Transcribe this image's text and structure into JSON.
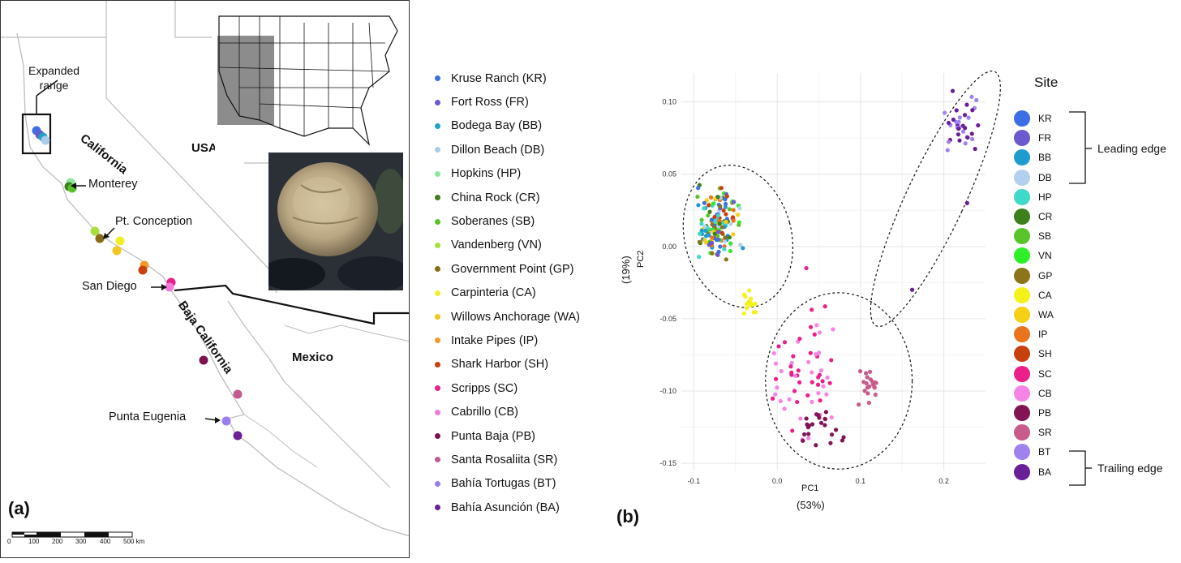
{
  "panel_a": {
    "label": "(a)",
    "map_labels": {
      "expanded_range": "Expanded\nrange",
      "california": "California",
      "usa": "USA",
      "monterey": "Monterey",
      "pt_conception": "Pt. Conception",
      "san_diego": "San Diego",
      "baja_california": "Baja California",
      "mexico": "Mexico",
      "punta_eugenia": "Punta Eugenia"
    },
    "scale_bar": {
      "ticks": [
        "0",
        "100",
        "200",
        "300",
        "400",
        "500 km"
      ]
    }
  },
  "legend": {
    "items": [
      {
        "label": "Kruse Ranch (KR)",
        "color": "#3b6fe3"
      },
      {
        "label": "Fort Ross (FR)",
        "color": "#6a5acd"
      },
      {
        "label": "Bodega Bay (BB)",
        "color": "#1fa3c6"
      },
      {
        "label": "Dillon Beach (DB)",
        "color": "#a9cdea"
      },
      {
        "label": "Hopkins (HP)",
        "color": "#8fe89a"
      },
      {
        "label": "China Rock (CR)",
        "color": "#3f7f1f"
      },
      {
        "label": "Soberanes (SB)",
        "color": "#59c22a"
      },
      {
        "label": "Vandenberg (VN)",
        "color": "#a6e03a"
      },
      {
        "label": "Government Point (GP)",
        "color": "#8a6b17"
      },
      {
        "label": "Carpinteria (CA)",
        "color": "#f2ee28"
      },
      {
        "label": "Willows Anchorage (WA)",
        "color": "#f2c81e"
      },
      {
        "label": "Intake Pipes (IP)",
        "color": "#f39a27"
      },
      {
        "label": "Shark Harbor (SH)",
        "color": "#c8410f"
      },
      {
        "label": "Scripps (SC)",
        "color": "#ea1f8b"
      },
      {
        "label": "Cabrillo (CB)",
        "color": "#f27ad9"
      },
      {
        "label": "Punta Baja (PB)",
        "color": "#7d1252"
      },
      {
        "label": "Santa Rosaliita (SR)",
        "color": "#c25a8f"
      },
      {
        "label": "Bahía Tortugas (BT)",
        "color": "#9a7ef0"
      },
      {
        "label": "Bahía Asunción (BA)",
        "color": "#6a1f95"
      }
    ]
  },
  "panel_b": {
    "label": "(b)",
    "legend_title": "Site",
    "leading_edge": "Leading edge",
    "trailing_edge": "Trailing edge",
    "sites": [
      {
        "code": "KR",
        "color": "#3b6fe3"
      },
      {
        "code": "FR",
        "color": "#6a5acd"
      },
      {
        "code": "BB",
        "color": "#1f9ccf"
      },
      {
        "code": "DB",
        "color": "#b3d1ef"
      },
      {
        "code": "HP",
        "color": "#3ed9c9"
      },
      {
        "code": "CR",
        "color": "#3d7f1a"
      },
      {
        "code": "SB",
        "color": "#5ac42b"
      },
      {
        "code": "VN",
        "color": "#2ff028"
      },
      {
        "code": "GP",
        "color": "#8b7419"
      },
      {
        "code": "CA",
        "color": "#f5f21a"
      },
      {
        "code": "WA",
        "color": "#f6cf17"
      },
      {
        "code": "IP",
        "color": "#ea741c"
      },
      {
        "code": "SH",
        "color": "#c8400e"
      },
      {
        "code": "SC",
        "color": "#ec1f8a"
      },
      {
        "code": "CB",
        "color": "#f584e6"
      },
      {
        "code": "PB",
        "color": "#821455"
      },
      {
        "code": "SR",
        "color": "#c95a8c"
      },
      {
        "code": "BT",
        "color": "#9f82ee"
      },
      {
        "code": "BA",
        "color": "#6a1f98"
      }
    ]
  },
  "chart_data": {
    "type": "scatter",
    "xlabel": "PC1",
    "xlabel_pct": "(53%)",
    "ylabel": "PC2",
    "ylabel_pct": "(19%)",
    "xlim": [
      -0.115,
      0.25
    ],
    "ylim": [
      -0.155,
      0.12
    ],
    "x_ticks": [
      -0.1,
      0.0,
      0.1,
      0.2
    ],
    "x_tick_labels": [
      "-0.1",
      "0.0",
      "0.1",
      "0.2"
    ],
    "y_ticks": [
      -0.15,
      -0.1,
      -0.05,
      0.0,
      0.05,
      0.1
    ],
    "y_tick_labels": [
      "-0.15",
      "-0.10",
      "-0.05",
      "0.00",
      "0.05",
      "0.10"
    ],
    "grid": true,
    "ellipses": [
      {
        "cx": -0.047,
        "cy": 0.007,
        "rx": 0.064,
        "ry": 0.05,
        "rot_deg": -15
      },
      {
        "cx": 0.074,
        "cy": -0.093,
        "rx": 0.088,
        "ry": 0.061,
        "rot_deg": 0
      },
      {
        "cx": 0.19,
        "cy": 0.033,
        "rx": 0.035,
        "ry": 0.097,
        "rot_deg": 25
      }
    ],
    "clusters": [
      {
        "sites": [
          "KR",
          "FR",
          "BB",
          "DB",
          "HP",
          "CR",
          "SB",
          "VN",
          "GP",
          "WA",
          "IP",
          "SH"
        ],
        "x_range": [
          -0.1,
          -0.04
        ],
        "y_range": [
          -0.01,
          0.045
        ],
        "n": 150
      },
      {
        "sites": [
          "CA"
        ],
        "x_range": [
          -0.045,
          -0.02
        ],
        "y_range": [
          -0.05,
          -0.025
        ],
        "n": 14
      },
      {
        "sites": [
          "SC",
          "CB"
        ],
        "x_range": [
          -0.02,
          0.08
        ],
        "y_range": [
          -0.14,
          -0.035
        ],
        "n": 60
      },
      {
        "sites": [
          "PB"
        ],
        "x_range": [
          0.02,
          0.09
        ],
        "y_range": [
          -0.14,
          -0.11
        ],
        "n": 22
      },
      {
        "sites": [
          "SR"
        ],
        "x_range": [
          0.095,
          0.125
        ],
        "y_range": [
          -0.113,
          -0.082
        ],
        "n": 20
      },
      {
        "sites": [
          "BA",
          "BT"
        ],
        "x_range": [
          0.2,
          0.245
        ],
        "y_range": [
          0.065,
          0.11
        ],
        "n": 35
      }
    ],
    "outliers": [
      {
        "site": "BA",
        "x": 0.228,
        "y": 0.03
      },
      {
        "site": "BA",
        "x": 0.162,
        "y": -0.03
      },
      {
        "site": "SC",
        "x": 0.035,
        "y": -0.015
      }
    ]
  }
}
